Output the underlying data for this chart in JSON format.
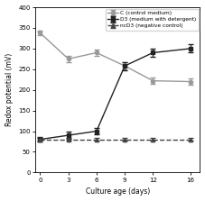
{
  "x": [
    0,
    3,
    6,
    9,
    12,
    16
  ],
  "C_y": [
    338,
    275,
    290,
    258,
    222,
    220
  ],
  "C_yerr": [
    5,
    8,
    8,
    8,
    8,
    8
  ],
  "D3_y": [
    80,
    90,
    100,
    258,
    290,
    300
  ],
  "D3_yerr": [
    5,
    8,
    8,
    10,
    10,
    10
  ],
  "ncD3_y": [
    80,
    80,
    80,
    80,
    80,
    80
  ],
  "ncD3_yerr": [
    3,
    3,
    3,
    3,
    3,
    3
  ],
  "C_color": "#999999",
  "D3_color": "#222222",
  "ncD3_color": "#444444",
  "C_label": "C (control medium)",
  "D3_label": "D3 (medium with detergent)",
  "ncD3_label": "ncD3 (negative control)",
  "xlabel": "Culture age (days)",
  "ylabel": "Redox potential (mV)",
  "ylim": [
    0,
    400
  ],
  "xlim": [
    -0.5,
    17
  ],
  "xticks": [
    0,
    3,
    6,
    9,
    12,
    16
  ],
  "yticks": [
    0,
    50,
    100,
    150,
    200,
    250,
    300,
    350,
    400
  ]
}
